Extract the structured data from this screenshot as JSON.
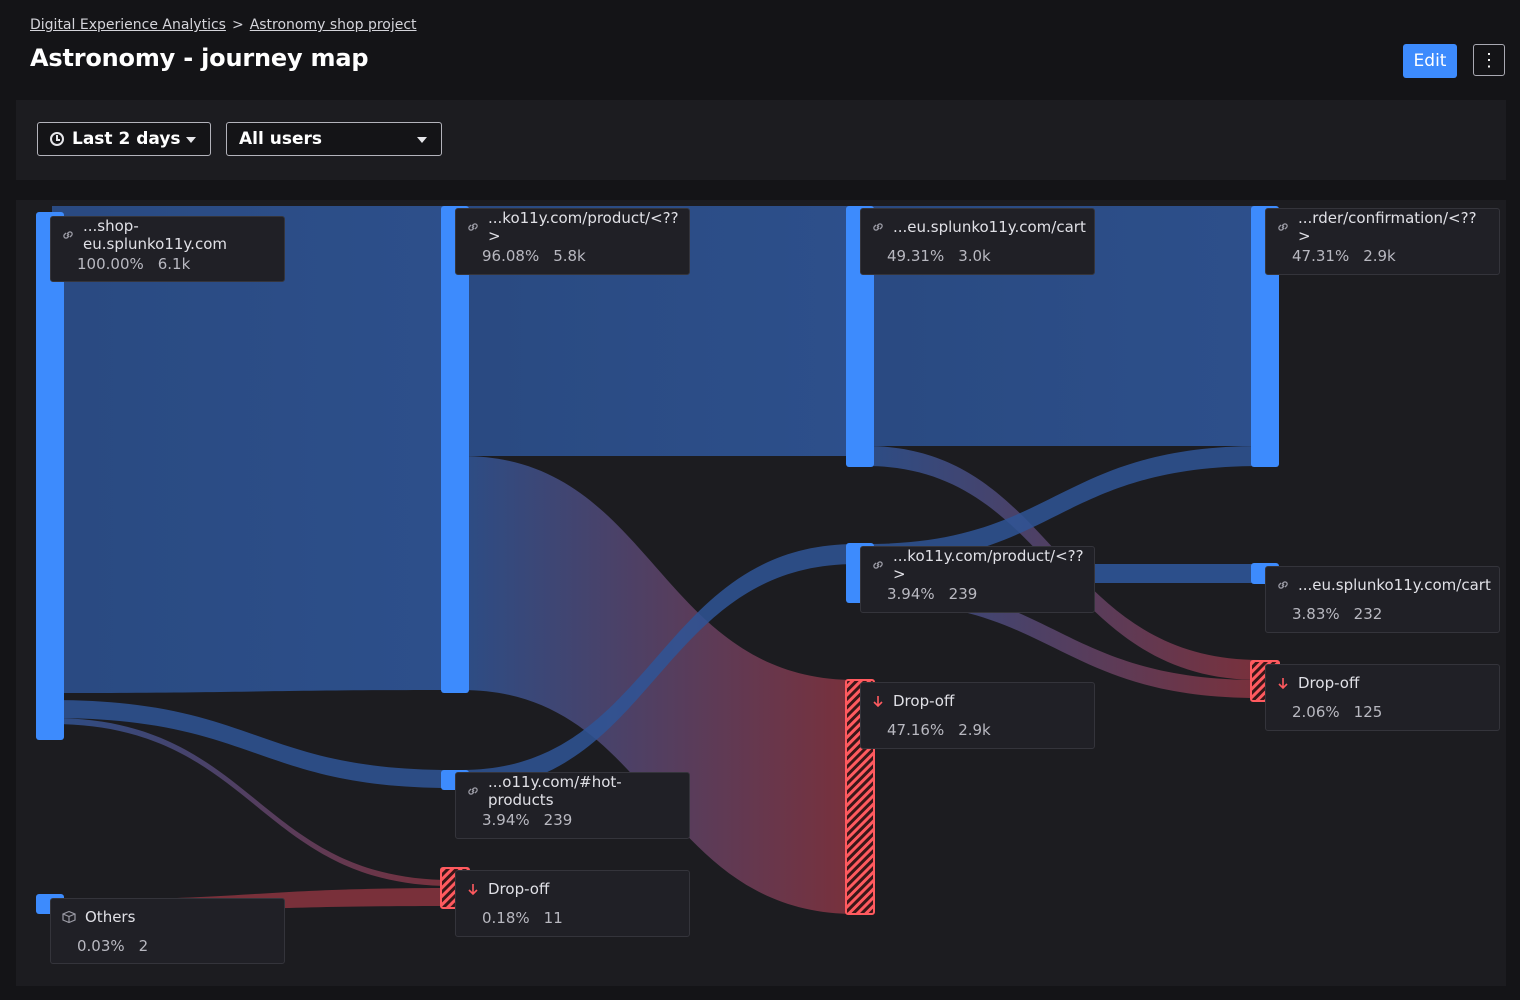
{
  "breadcrumb": {
    "root": "Digital Experience Analytics",
    "project": "Astronomy shop project"
  },
  "page": {
    "title": "Astronomy - journey map"
  },
  "toolbar": {
    "edit_label": "Edit",
    "more_label": "⋮"
  },
  "filters": {
    "time_range": "Last 2 days",
    "segment": "All users"
  },
  "colors": {
    "node": "#3d8bfd",
    "flow": "#2f5597",
    "dropoff": "#ff5a5f"
  },
  "icons": {
    "link": "link-icon",
    "dropoff": "arrow-down-icon",
    "others": "box-icon",
    "time": "clock-icon"
  },
  "journey": {
    "nodes": [
      {
        "id": "n0",
        "step": 1,
        "label": "...shop-eu.splunko11y.com",
        "percent": "100.00%",
        "count": "6.1k",
        "type": "page"
      },
      {
        "id": "n1",
        "step": 1,
        "label": "Others",
        "percent": "0.03%",
        "count": "2",
        "type": "others"
      },
      {
        "id": "n2",
        "step": 2,
        "label": "...ko11y.com/product/<??>",
        "percent": "96.08%",
        "count": "5.8k",
        "type": "page"
      },
      {
        "id": "n3",
        "step": 2,
        "label": "...o11y.com/#hot-products",
        "percent": "3.94%",
        "count": "239",
        "type": "page"
      },
      {
        "id": "n4",
        "step": 2,
        "label": "Drop-off",
        "percent": "0.18%",
        "count": "11",
        "type": "dropoff"
      },
      {
        "id": "n5",
        "step": 3,
        "label": "...eu.splunko11y.com/cart",
        "percent": "49.31%",
        "count": "3.0k",
        "type": "page"
      },
      {
        "id": "n6",
        "step": 3,
        "label": "...ko11y.com/product/<??>",
        "percent": "3.94%",
        "count": "239",
        "type": "page"
      },
      {
        "id": "n7",
        "step": 3,
        "label": "Drop-off",
        "percent": "47.16%",
        "count": "2.9k",
        "type": "dropoff"
      },
      {
        "id": "n8",
        "step": 4,
        "label": "...rder/confirmation/<??>",
        "percent": "47.31%",
        "count": "2.9k",
        "type": "page"
      },
      {
        "id": "n9",
        "step": 4,
        "label": "...eu.splunko11y.com/cart",
        "percent": "3.83%",
        "count": "232",
        "type": "page"
      },
      {
        "id": "n10",
        "step": 4,
        "label": "Drop-off",
        "percent": "2.06%",
        "count": "125",
        "type": "dropoff"
      }
    ],
    "links": [
      {
        "from": "n0",
        "to": "n2",
        "share": 0.9608
      },
      {
        "from": "n0",
        "to": "n3",
        "share": 0.0394
      },
      {
        "from": "n0",
        "to": "n4",
        "share": 0.0018
      },
      {
        "from": "n1",
        "to": "n4",
        "share": 0.0003
      },
      {
        "from": "n2",
        "to": "n5",
        "share": 0.4931
      },
      {
        "from": "n2",
        "to": "n7",
        "share": 0.4716
      },
      {
        "from": "n3",
        "to": "n6",
        "share": 0.0394
      },
      {
        "from": "n5",
        "to": "n8",
        "share": 0.4731
      },
      {
        "from": "n5",
        "to": "n10",
        "share": 0.02
      },
      {
        "from": "n6",
        "to": "n9",
        "share": 0.0383
      },
      {
        "from": "n6",
        "to": "n10",
        "share": 0.0011
      }
    ]
  }
}
